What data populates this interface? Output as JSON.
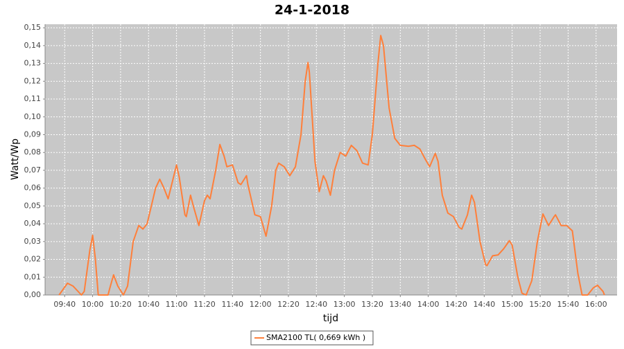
{
  "chart_data": {
    "type": "line",
    "title": "24-1-2018",
    "x_label": "tijd",
    "y_label": "Watt/Wp",
    "xlim": [
      "09:26",
      "16:15"
    ],
    "ylim": [
      0,
      0.152
    ],
    "xticks": [
      "09:40",
      "10:00",
      "10:20",
      "10:40",
      "11:00",
      "11:20",
      "11:40",
      "12:00",
      "12:20",
      "12:40",
      "13:00",
      "13:20",
      "13:40",
      "14:00",
      "14:20",
      "14:40",
      "15:00",
      "15:20",
      "15:40",
      "16:00"
    ],
    "yticks": [
      {
        "value": 0,
        "label": "0,00"
      },
      {
        "value": 0.01,
        "label": "0,01"
      },
      {
        "value": 0.02,
        "label": "0,02"
      },
      {
        "value": 0.03,
        "label": "0,03"
      },
      {
        "value": 0.04,
        "label": "0,04"
      },
      {
        "value": 0.05,
        "label": "0,05"
      },
      {
        "value": 0.06,
        "label": "0,06"
      },
      {
        "value": 0.07,
        "label": "0,07"
      },
      {
        "value": 0.08,
        "label": "0,08"
      },
      {
        "value": 0.09,
        "label": "0,09"
      },
      {
        "value": 0.1,
        "label": "0,10"
      },
      {
        "value": 0.11,
        "label": "0,11"
      },
      {
        "value": 0.12,
        "label": "0,12"
      },
      {
        "value": 0.13,
        "label": "0,13"
      },
      {
        "value": 0.14,
        "label": "0,14"
      },
      {
        "value": 0.15,
        "label": "0,15"
      }
    ],
    "grid": true,
    "legend": "bottom",
    "x": [
      "09:36",
      "09:42",
      "09:46",
      "09:52",
      "09:54",
      "09:58",
      "10:00",
      "10:02",
      "10:04",
      "10:11",
      "10:12",
      "10:15",
      "10:18",
      "10:22",
      "10:25",
      "10:29",
      "10:33",
      "10:36",
      "10:39",
      "10:45",
      "10:48",
      "10:51",
      "10:54",
      "11:00",
      "11:02",
      "11:06",
      "11:07",
      "11:10",
      "11:12",
      "11:16",
      "11:20",
      "11:22",
      "11:24",
      "11:28",
      "11:31",
      "11:34",
      "11:36",
      "11:40",
      "11:44",
      "11:46",
      "11:50",
      "11:51",
      "11:56",
      "12:00",
      "12:04",
      "12:08",
      "12:11",
      "12:13",
      "12:17",
      "12:21",
      "12:25",
      "12:29",
      "12:32",
      "12:34",
      "12:35",
      "12:39",
      "12:42",
      "12:45",
      "12:47",
      "12:50",
      "12:53",
      "12:57",
      "13:01",
      "13:05",
      "13:09",
      "13:13",
      "13:17",
      "13:20",
      "13:24",
      "13:26",
      "13:28",
      "13:32",
      "13:36",
      "13:40",
      "13:46",
      "13:50",
      "13:54",
      "13:58",
      "14:01",
      "14:05",
      "14:07",
      "14:10",
      "14:14",
      "14:18",
      "14:22",
      "14:24",
      "14:28",
      "14:31",
      "14:33",
      "14:37",
      "14:41",
      "14:42",
      "14:46",
      "14:50",
      "14:54",
      "14:58",
      "15:00",
      "15:04",
      "15:07",
      "15:10",
      "15:14",
      "15:18",
      "15:22",
      "15:26",
      "15:30",
      "15:31",
      "15:35",
      "15:39",
      "15:43",
      "15:47",
      "15:50",
      "15:54",
      "15:58",
      "16:01",
      "16:05",
      "16:06"
    ],
    "series": [
      {
        "name": "SMA2100 TL( 0,669 kWh )",
        "color": "#ff7f3a",
        "values": [
          0,
          0.0066,
          0.005,
          0,
          0.002,
          0.025,
          0.0335,
          0.02,
          0,
          0,
          0.003,
          0.0113,
          0.005,
          0,
          0.005,
          0.03,
          0.039,
          0.037,
          0.04,
          0.06,
          0.065,
          0.06,
          0.054,
          0.073,
          0.066,
          0.045,
          0.044,
          0.056,
          0.05,
          0.039,
          0.053,
          0.056,
          0.054,
          0.07,
          0.0845,
          0.078,
          0.072,
          0.073,
          0.063,
          0.062,
          0.067,
          0.062,
          0.045,
          0.044,
          0.033,
          0.05,
          0.07,
          0.074,
          0.072,
          0.067,
          0.072,
          0.09,
          0.12,
          0.1305,
          0.125,
          0.075,
          0.058,
          0.067,
          0.064,
          0.056,
          0.07,
          0.08,
          0.078,
          0.084,
          0.081,
          0.074,
          0.073,
          0.09,
          0.13,
          0.1457,
          0.14,
          0.105,
          0.088,
          0.084,
          0.0835,
          0.084,
          0.082,
          0.076,
          0.072,
          0.0795,
          0.075,
          0.056,
          0.046,
          0.044,
          0.038,
          0.037,
          0.045,
          0.056,
          0.052,
          0.03,
          0.017,
          0.0165,
          0.022,
          0.0225,
          0.026,
          0.0305,
          0.028,
          0.01,
          0.001,
          0,
          0.008,
          0.03,
          0.0455,
          0.039,
          0.044,
          0.045,
          0.039,
          0.039,
          0.036,
          0.012,
          0,
          0,
          0.004,
          0.0055,
          0.002,
          0
        ]
      }
    ]
  }
}
